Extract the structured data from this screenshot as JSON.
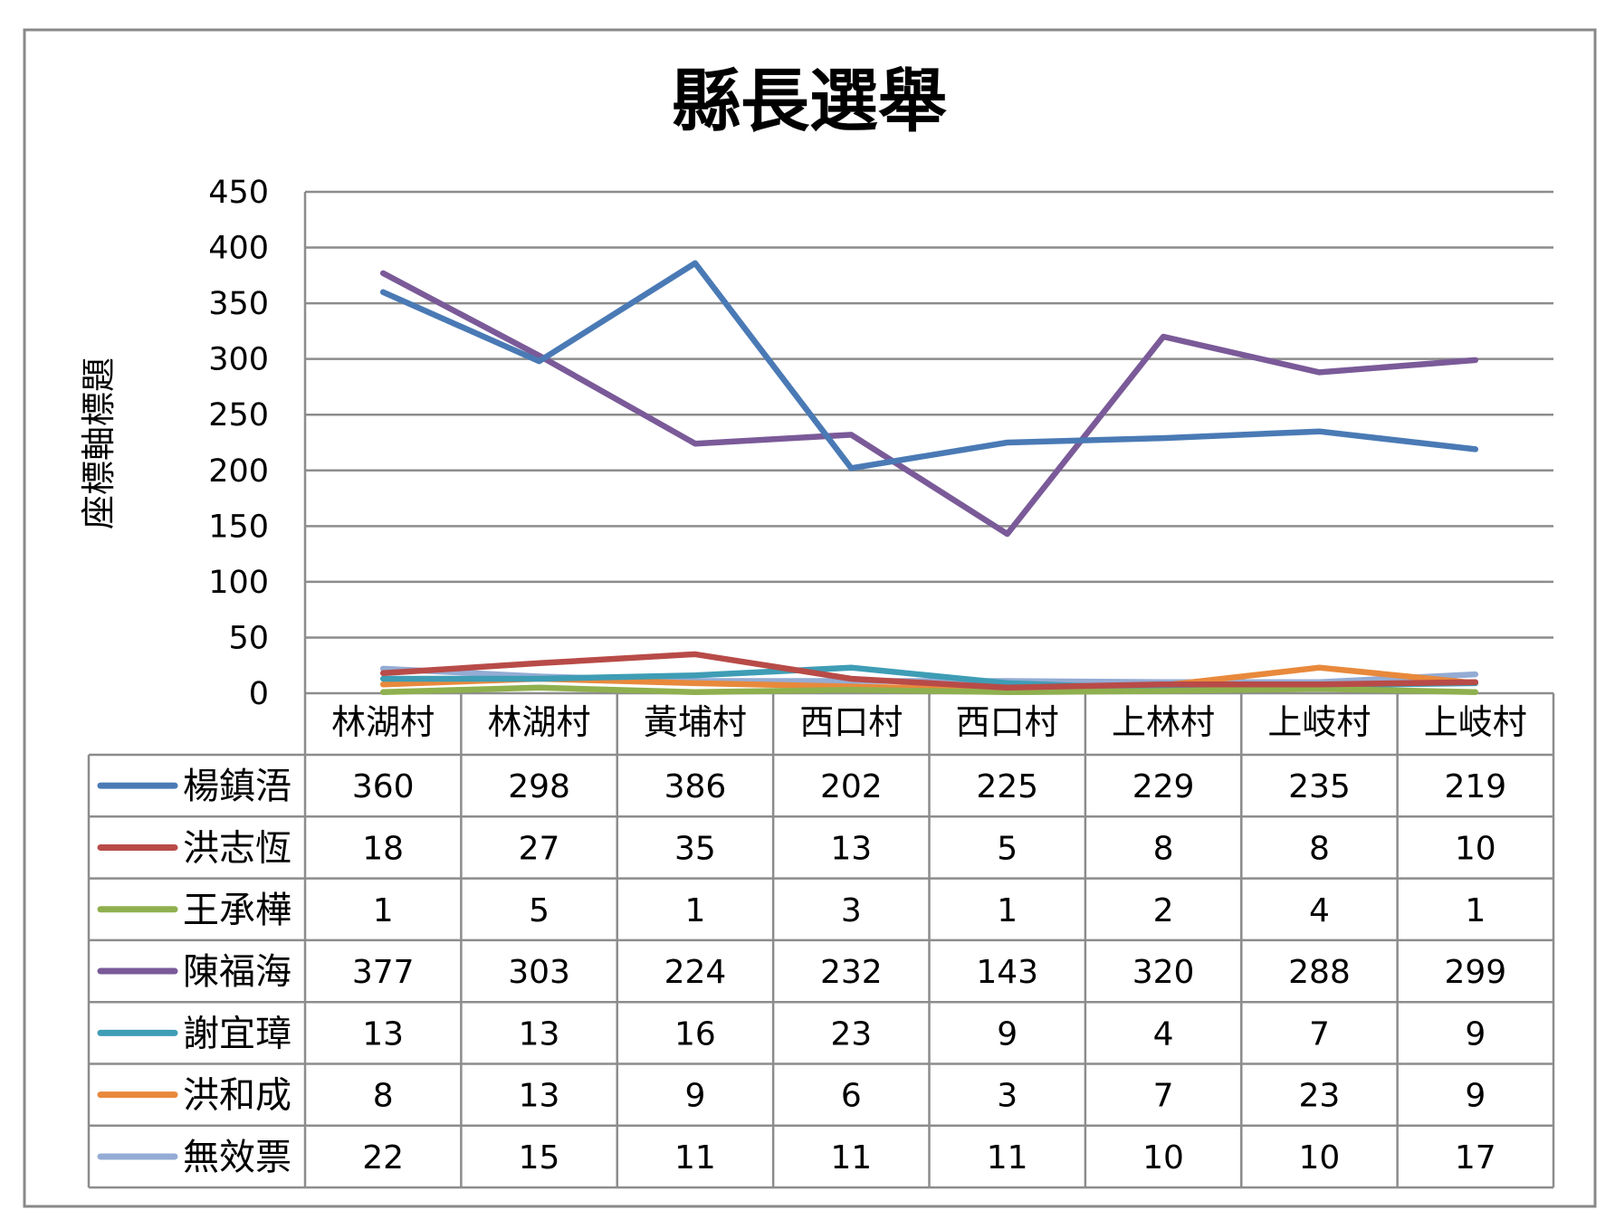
{
  "chart_data": {
    "type": "line",
    "title": "縣長選舉",
    "xlabel": "",
    "ylabel": "座標軸標題",
    "ylim": [
      0,
      450
    ],
    "yticks": [
      0,
      50,
      100,
      150,
      200,
      250,
      300,
      350,
      400,
      450
    ],
    "grid": true,
    "legend": "data-table",
    "categories": [
      "林湖村",
      "林湖村",
      "黃埔村",
      "西口村",
      "西口村",
      "上林村",
      "上岐村",
      "上岐村"
    ],
    "series": [
      {
        "name": "楊鎮浯",
        "color": "#4a7ab5",
        "values": [
          360,
          298,
          386,
          202,
          225,
          229,
          235,
          219
        ]
      },
      {
        "name": "洪志恆",
        "color": "#b84b48",
        "values": [
          18,
          27,
          35,
          13,
          5,
          8,
          8,
          10
        ]
      },
      {
        "name": "王承樺",
        "color": "#8fb04f",
        "values": [
          1,
          5,
          1,
          3,
          1,
          2,
          4,
          1
        ]
      },
      {
        "name": "陳福海",
        "color": "#7a5a98",
        "values": [
          377,
          303,
          224,
          232,
          143,
          320,
          288,
          299
        ]
      },
      {
        "name": "謝宜璋",
        "color": "#3e9db5",
        "values": [
          13,
          13,
          16,
          23,
          9,
          4,
          7,
          9
        ]
      },
      {
        "name": "洪和成",
        "color": "#e8893c",
        "values": [
          8,
          13,
          9,
          6,
          3,
          7,
          23,
          9
        ]
      },
      {
        "name": "無效票",
        "color": "#94acd4",
        "values": [
          22,
          15,
          11,
          11,
          11,
          10,
          10,
          17
        ]
      }
    ]
  }
}
